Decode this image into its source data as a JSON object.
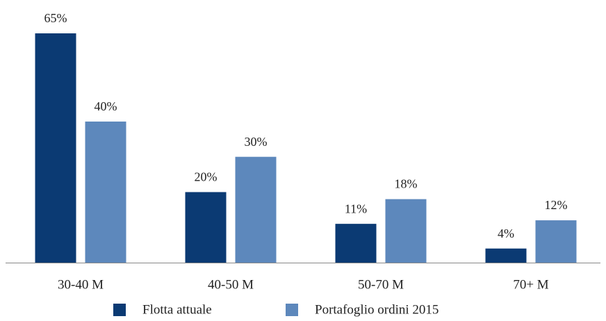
{
  "chart_data": {
    "type": "bar",
    "categories": [
      "30-40 M",
      "40-50 M",
      "50-70 M",
      "70+ M"
    ],
    "series": [
      {
        "name": "Flotta attuale",
        "color": "#0b3a73",
        "values": [
          65,
          20,
          11,
          4
        ],
        "value_labels": [
          "65%",
          "20%",
          "11%",
          "4%"
        ]
      },
      {
        "name": "Portafoglio ordini 2015",
        "color": "#5d88bc",
        "values": [
          40,
          30,
          18,
          12
        ],
        "value_labels": [
          "40%",
          "30%",
          "18%",
          "12%"
        ]
      }
    ],
    "ylim": [
      0,
      65
    ],
    "legend": "bottom"
  }
}
